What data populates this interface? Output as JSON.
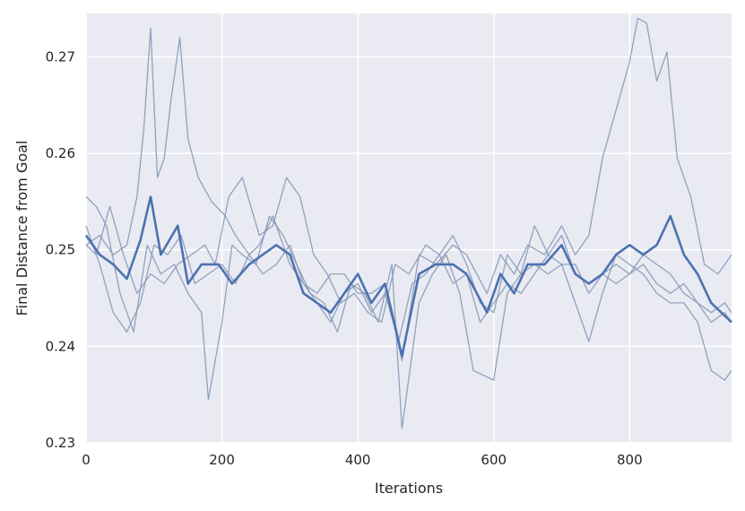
{
  "chart_data": {
    "type": "line",
    "title": "",
    "xlabel": "Iterations",
    "ylabel": "Final Distance from Goal",
    "xlim": [
      0,
      950
    ],
    "ylim": [
      0.23,
      0.2745
    ],
    "xticks": [
      0,
      200,
      400,
      600,
      800
    ],
    "xtick_labels": [
      "0",
      "200",
      "400",
      "600",
      "800"
    ],
    "yticks": [
      0.23,
      0.24,
      0.25,
      0.26,
      0.27
    ],
    "ytick_labels": [
      "0.23",
      "0.24",
      "0.25",
      "0.26",
      "0.27"
    ],
    "grid": true,
    "legend": "none",
    "colors": {
      "plot_background": "#eaeaf2",
      "grid": "#ffffff",
      "mean_line": "#4c72b0",
      "run_line": "#7f95b6"
    },
    "series": [
      {
        "role": "mean",
        "x": [
          0,
          20,
          40,
          60,
          80,
          95,
          110,
          135,
          150,
          170,
          195,
          215,
          240,
          260,
          280,
          300,
          320,
          340,
          360,
          380,
          400,
          420,
          440,
          465,
          490,
          515,
          540,
          560,
          590,
          610,
          630,
          650,
          675,
          700,
          720,
          740,
          760,
          780,
          800,
          820,
          840,
          860,
          880,
          900,
          920,
          950
        ],
        "y": [
          0.2515,
          0.2495,
          0.2485,
          0.247,
          0.251,
          0.2555,
          0.2495,
          0.2525,
          0.2465,
          0.2485,
          0.2485,
          0.2465,
          0.2485,
          0.2495,
          0.2505,
          0.2495,
          0.2455,
          0.2445,
          0.2435,
          0.2455,
          0.2475,
          0.2445,
          0.2465,
          0.239,
          0.2475,
          0.2485,
          0.2485,
          0.2475,
          0.2435,
          0.2475,
          0.2455,
          0.2485,
          0.2485,
          0.2505,
          0.2475,
          0.2465,
          0.2475,
          0.2495,
          0.2505,
          0.2495,
          0.2505,
          0.2535,
          0.2495,
          0.2475,
          0.2445,
          0.2425
        ]
      },
      {
        "role": "run",
        "x": [
          0,
          20,
          40,
          60,
          75,
          85,
          95,
          105,
          115,
          125,
          138,
          150,
          165,
          185,
          205,
          220,
          240,
          255,
          275,
          300,
          320,
          340,
          360,
          380,
          400,
          420,
          440,
          465,
          490,
          515,
          540,
          560,
          590,
          610,
          630,
          650,
          675,
          700,
          720,
          740,
          760,
          780,
          800,
          812,
          825,
          840,
          855,
          870,
          890,
          910,
          930,
          950
        ],
        "y": [
          0.2505,
          0.2515,
          0.2495,
          0.2505,
          0.2555,
          0.2625,
          0.273,
          0.2575,
          0.2595,
          0.2655,
          0.272,
          0.2615,
          0.2575,
          0.255,
          0.2535,
          0.2515,
          0.2495,
          0.2505,
          0.2535,
          0.2485,
          0.2465,
          0.2455,
          0.2475,
          0.2475,
          0.2455,
          0.2455,
          0.2465,
          0.2385,
          0.2495,
          0.2485,
          0.2505,
          0.2495,
          0.2455,
          0.2495,
          0.2475,
          0.2505,
          0.2495,
          0.2525,
          0.2495,
          0.2515,
          0.2595,
          0.2645,
          0.2695,
          0.274,
          0.2735,
          0.2675,
          0.2705,
          0.2595,
          0.2555,
          0.2485,
          0.2475,
          0.2495
        ]
      },
      {
        "role": "run",
        "x": [
          0,
          15,
          30,
          50,
          70,
          90,
          110,
          130,
          150,
          170,
          180,
          200,
          215,
          230,
          250,
          270,
          290,
          310,
          330,
          350,
          370,
          390,
          410,
          430,
          450,
          465,
          490,
          510,
          530,
          550,
          570,
          600,
          620,
          640,
          660,
          680,
          700,
          720,
          740,
          760,
          780,
          800,
          820,
          840,
          860,
          880,
          900,
          920,
          940,
          950
        ],
        "y": [
          0.2555,
          0.2545,
          0.2525,
          0.2455,
          0.2415,
          0.2505,
          0.2475,
          0.2485,
          0.2455,
          0.2435,
          0.2345,
          0.2425,
          0.2505,
          0.2495,
          0.2485,
          0.2535,
          0.2515,
          0.2485,
          0.2455,
          0.2445,
          0.2415,
          0.2465,
          0.2455,
          0.2425,
          0.2485,
          0.2315,
          0.2445,
          0.2475,
          0.2495,
          0.2455,
          0.2375,
          0.2365,
          0.2455,
          0.2475,
          0.2485,
          0.2475,
          0.2485,
          0.2445,
          0.2405,
          0.2455,
          0.2495,
          0.2485,
          0.2475,
          0.2455,
          0.2445,
          0.2445,
          0.2425,
          0.2375,
          0.2365,
          0.2375
        ]
      },
      {
        "role": "run",
        "x": [
          0,
          15,
          35,
          55,
          75,
          95,
          115,
          135,
          155,
          175,
          190,
          210,
          230,
          255,
          275,
          295,
          315,
          335,
          355,
          375,
          395,
          415,
          435,
          455,
          475,
          500,
          520,
          540,
          560,
          580,
          600,
          620,
          640,
          660,
          680,
          700,
          720,
          740,
          760,
          780,
          800,
          820,
          840,
          860,
          880,
          900,
          920,
          940,
          950
        ],
        "y": [
          0.2505,
          0.2495,
          0.2545,
          0.2495,
          0.2455,
          0.2475,
          0.2465,
          0.2485,
          0.2495,
          0.2505,
          0.2485,
          0.2555,
          0.2575,
          0.2515,
          0.2525,
          0.2575,
          0.2555,
          0.2495,
          0.2475,
          0.2445,
          0.2455,
          0.2435,
          0.2425,
          0.2485,
          0.2475,
          0.2505,
          0.2495,
          0.2515,
          0.2485,
          0.2445,
          0.2435,
          0.2495,
          0.2475,
          0.2525,
          0.2495,
          0.2485,
          0.2485,
          0.2455,
          0.2475,
          0.2485,
          0.2475,
          0.2485,
          0.2465,
          0.2455,
          0.2465,
          0.2445,
          0.2435,
          0.2445,
          0.2435
        ]
      },
      {
        "role": "run",
        "x": [
          0,
          20,
          40,
          60,
          80,
          100,
          120,
          140,
          160,
          180,
          200,
          220,
          240,
          260,
          280,
          300,
          320,
          340,
          360,
          380,
          400,
          420,
          440,
          460,
          480,
          500,
          520,
          540,
          560,
          580,
          600,
          620,
          640,
          660,
          680,
          700,
          720,
          740,
          760,
          780,
          800,
          820,
          840,
          860,
          880,
          900,
          920,
          940,
          950
        ],
        "y": [
          0.2525,
          0.2485,
          0.2435,
          0.2415,
          0.2445,
          0.2505,
          0.2495,
          0.2515,
          0.2465,
          0.2475,
          0.2485,
          0.2465,
          0.2495,
          0.2475,
          0.2485,
          0.2505,
          0.2465,
          0.2445,
          0.2425,
          0.2455,
          0.2465,
          0.2435,
          0.2455,
          0.2405,
          0.2465,
          0.2475,
          0.2495,
          0.2465,
          0.2475,
          0.2425,
          0.2445,
          0.2465,
          0.2455,
          0.2475,
          0.2495,
          0.2515,
          0.2475,
          0.2465,
          0.2475,
          0.2465,
          0.2475,
          0.2495,
          0.2485,
          0.2475,
          0.2455,
          0.2445,
          0.2425,
          0.2435,
          0.2425
        ]
      }
    ]
  }
}
